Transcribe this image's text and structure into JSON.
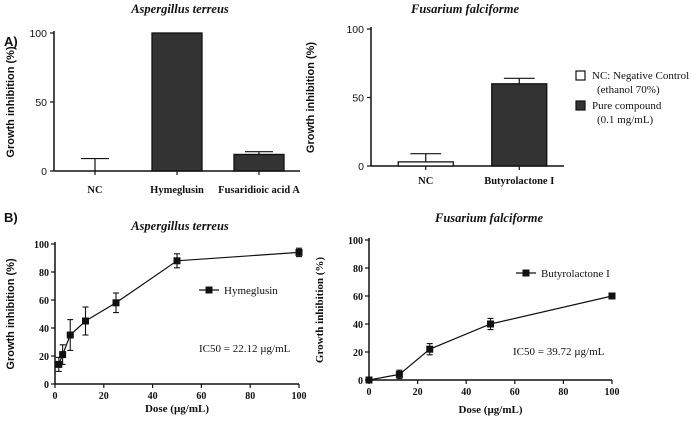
{
  "panel_labels": [
    "A)",
    "B)"
  ],
  "legend": {
    "items": [
      {
        "swatch": "#ffffff",
        "line1": "NC: Negative Control",
        "line2": "(ethanol 70%)"
      },
      {
        "swatch": "#333333",
        "line1": "Pure compound",
        "line2": "(0.1 mg/mL)"
      }
    ]
  },
  "chart_data": [
    {
      "type": "bar",
      "title": "Aspergillus terreus",
      "xlabel": "",
      "ylabel": "Growth inhibition (%)",
      "ylim": [
        0,
        100
      ],
      "yticks": [
        0,
        50,
        100
      ],
      "categories": [
        "NC",
        "Hymeglusin",
        "Fusaridioic acid A"
      ],
      "values": [
        0,
        100,
        12
      ],
      "errors": [
        9,
        0,
        2
      ],
      "bar_colors": [
        "#ffffff",
        "#333333",
        "#333333"
      ]
    },
    {
      "type": "bar",
      "title": "Fusarium falciforme",
      "xlabel": "",
      "ylabel": "Growth inhibition (%)",
      "ylim": [
        0,
        100
      ],
      "yticks": [
        0,
        50,
        100
      ],
      "categories": [
        "NC",
        "Butyrolactone I"
      ],
      "values": [
        3,
        60
      ],
      "errors": [
        6,
        4
      ],
      "bar_colors": [
        "#ffffff",
        "#333333"
      ]
    },
    {
      "type": "line",
      "title": "Aspergillus terreus",
      "xlabel": "Dose (µg/mL)",
      "ylabel": "Growth inhibition (%)",
      "xlim": [
        0,
        100
      ],
      "ylim": [
        0,
        100
      ],
      "xticks": [
        0,
        20,
        40,
        60,
        80,
        100
      ],
      "yticks": [
        0,
        20,
        40,
        60,
        80,
        100
      ],
      "series": [
        {
          "name": "Hymeglusin",
          "x": [
            1.56,
            3.13,
            6.25,
            12.5,
            25,
            50,
            100
          ],
          "y": [
            14,
            21,
            35,
            45,
            58,
            88,
            94
          ],
          "err": [
            5,
            7,
            11,
            10,
            7,
            5,
            3
          ]
        }
      ],
      "annotation": "IC50 = 22.12 µg/mL"
    },
    {
      "type": "line",
      "title": "Fusarium falciforme",
      "xlabel": "Dose (µg/mL)",
      "ylabel": "Growth inhibition (%)",
      "xlim": [
        0,
        100
      ],
      "ylim": [
        0,
        100
      ],
      "xticks": [
        0,
        20,
        40,
        60,
        80,
        100
      ],
      "yticks": [
        0,
        20,
        40,
        60,
        80,
        100
      ],
      "series": [
        {
          "name": "Butyrolactone I",
          "x": [
            0,
            12.5,
            25,
            50,
            100
          ],
          "y": [
            0,
            4,
            22,
            40,
            60
          ],
          "err": [
            1,
            3,
            4,
            4,
            2
          ]
        }
      ],
      "annotation": "IC50 = 39.72 µg/mL"
    }
  ]
}
